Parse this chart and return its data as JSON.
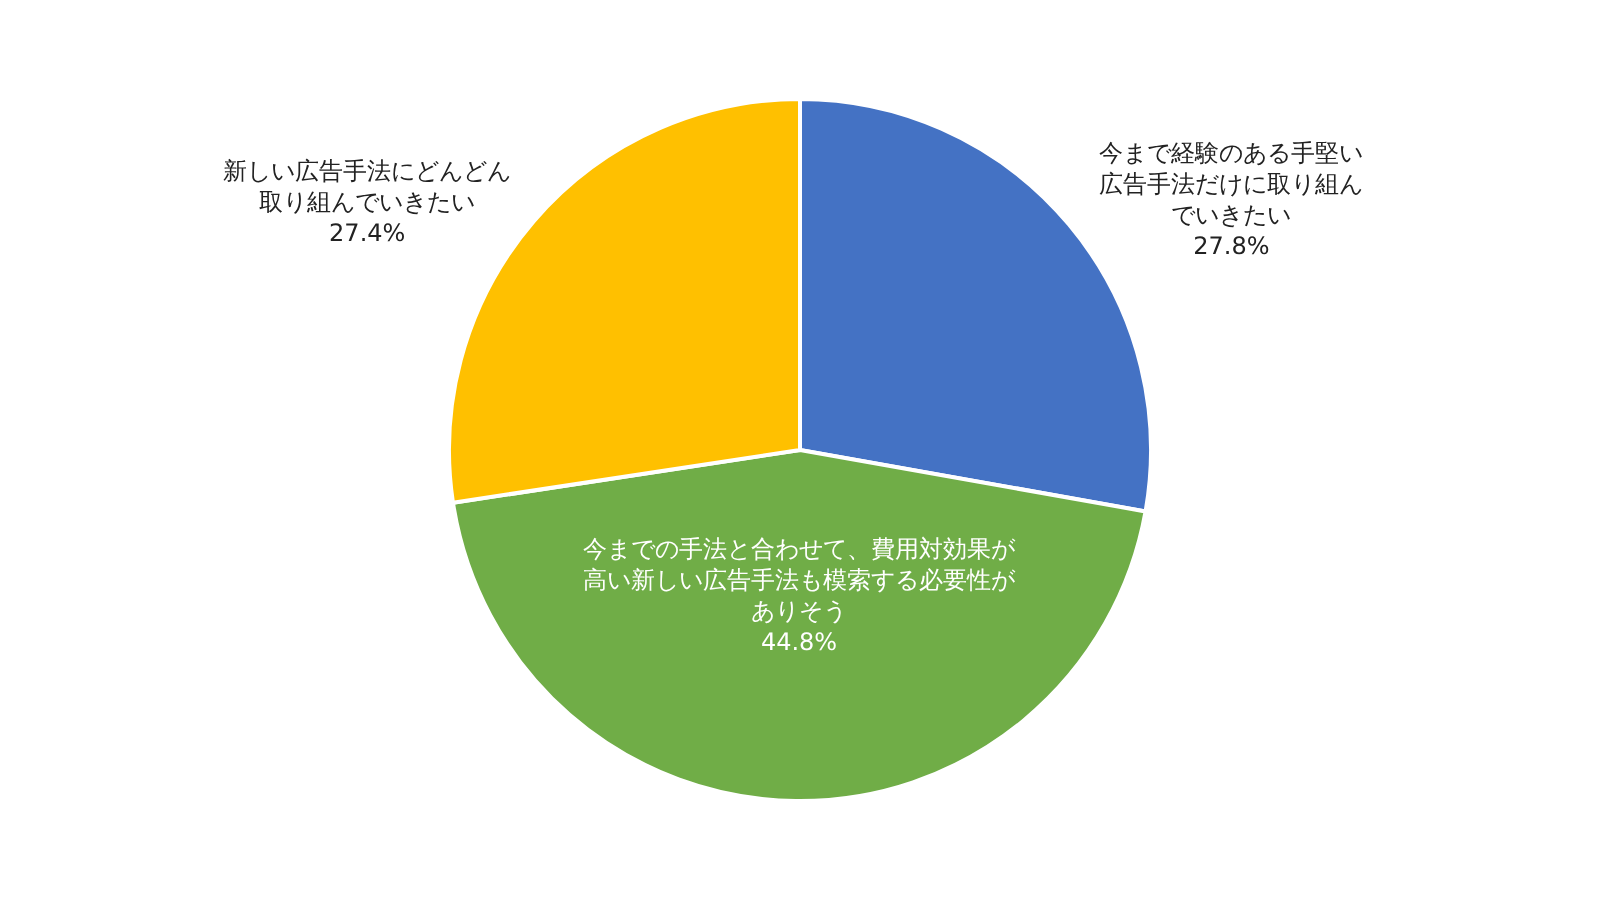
{
  "chart_data": {
    "type": "pie",
    "categories": [
      "今まで経験のある手堅い広告手法だけに取り組んでいきたい",
      "今までの手法と合わせて、費用対効果が高い新しい広告手法も模索する必要性がありそう",
      "新しい広告手法にどんどん取り組んでいきたい"
    ],
    "values": [
      27.8,
      44.8,
      27.4
    ],
    "value_labels": [
      "27.8%",
      "44.8%",
      "27.4%"
    ],
    "colors": [
      "#4472c4",
      "#70ad47",
      "#ffc000"
    ],
    "legend": false
  }
}
